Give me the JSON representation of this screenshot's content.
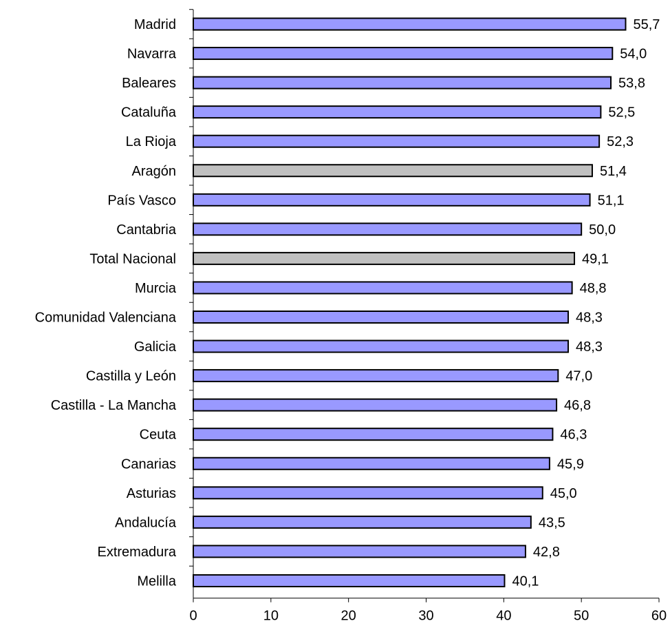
{
  "chart_data": {
    "type": "bar",
    "orientation": "horizontal",
    "title": "",
    "xlabel": "",
    "ylabel": "",
    "xlim": [
      0,
      60
    ],
    "x_ticks": [
      0,
      10,
      20,
      30,
      40,
      50,
      60
    ],
    "grid": false,
    "legend": "none",
    "decimal_separator": ",",
    "colors": {
      "default_bar": "#9999ff",
      "highlight_bar": "#c0c0c0",
      "bar_border": "#000000",
      "axis": "#000000"
    },
    "categories": [
      "Madrid",
      "Navarra",
      "Baleares",
      "Cataluña",
      "La Rioja",
      "Aragón",
      "País Vasco",
      "Cantabria",
      "Total Nacional",
      "Murcia",
      "Comunidad Valenciana",
      "Galicia",
      "Castilla y León",
      "Castilla - La Mancha",
      "Ceuta",
      "Canarias",
      "Asturias",
      "Andalucía",
      "Extremadura",
      "Melilla"
    ],
    "values": [
      55.7,
      54.0,
      53.8,
      52.5,
      52.3,
      51.4,
      51.1,
      50.0,
      49.1,
      48.8,
      48.3,
      48.3,
      47.0,
      46.8,
      46.3,
      45.9,
      45.0,
      43.5,
      42.8,
      40.1
    ],
    "value_labels": [
      "55,7",
      "54,0",
      "53,8",
      "52,5",
      "52,3",
      "51,4",
      "51,1",
      "50,0",
      "49,1",
      "48,8",
      "48,3",
      "48,3",
      "47,0",
      "46,8",
      "46,3",
      "45,9",
      "45,0",
      "43,5",
      "42,8",
      "40,1"
    ],
    "highlighted_categories": [
      "Aragón",
      "Total Nacional"
    ]
  }
}
